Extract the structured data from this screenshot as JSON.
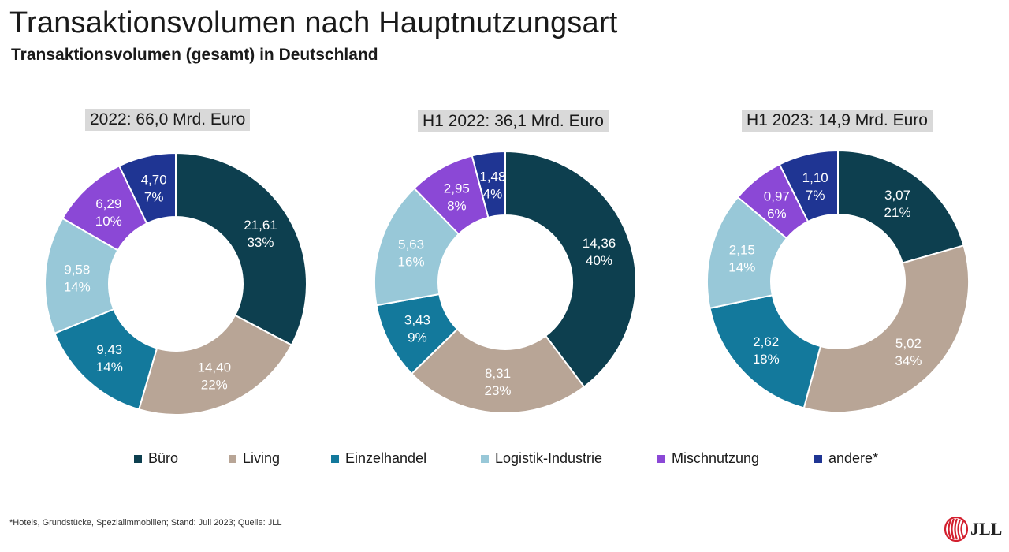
{
  "title": "Transaktionsvolumen nach Hauptnutzungsart",
  "subtitle": "Transaktionsvolumen (gesamt) in Deutschland",
  "colors": {
    "Büro": "#0d3f4f",
    "Living": "#b8a596",
    "Einzelhandel": "#13799c",
    "Logistik-Industrie": "#98c8d8",
    "Mischnutzung": "#8b48d6",
    "andere*": "#1f3593"
  },
  "legend": [
    "Büro",
    "Living",
    "Einzelhandel",
    "Logistik-Industrie",
    "Mischnutzung",
    "andere*"
  ],
  "chart_data": [
    {
      "type": "pie",
      "subtype": "donut",
      "title": "2022: 66,0 Mrd. Euro",
      "categories": [
        "Büro",
        "Living",
        "Einzelhandel",
        "Logistik-Industrie",
        "Mischnutzung",
        "andere*"
      ],
      "values": [
        21.61,
        14.4,
        9.43,
        9.58,
        6.29,
        4.7
      ],
      "value_labels": [
        "21,61",
        "14,40",
        "9,43",
        "9,58",
        "6,29",
        "4,70"
      ],
      "percent_labels": [
        "33%",
        "22%",
        "14%",
        "14%",
        "10%",
        "7%"
      ]
    },
    {
      "type": "pie",
      "subtype": "donut",
      "title": "H1 2022: 36,1 Mrd. Euro",
      "categories": [
        "Büro",
        "Living",
        "Einzelhandel",
        "Logistik-Industrie",
        "Mischnutzung",
        "andere*"
      ],
      "values": [
        14.36,
        8.31,
        3.43,
        5.63,
        2.95,
        1.48
      ],
      "value_labels": [
        "14,36",
        "8,31",
        "3,43",
        "5,63",
        "2,95",
        "1,48"
      ],
      "percent_labels": [
        "40%",
        "23%",
        "9%",
        "16%",
        "8%",
        "4%"
      ]
    },
    {
      "type": "pie",
      "subtype": "donut",
      "title": "H1 2023: 14,9 Mrd. Euro",
      "categories": [
        "Büro",
        "Living",
        "Einzelhandel",
        "Logistik-Industrie",
        "Mischnutzung",
        "andere*"
      ],
      "values": [
        3.07,
        5.02,
        2.62,
        2.15,
        0.97,
        1.1
      ],
      "value_labels": [
        "3,07",
        "5,02",
        "2,62",
        "2,15",
        "0,97",
        "1,10"
      ],
      "percent_labels": [
        "21%",
        "34%",
        "18%",
        "14%",
        "6%",
        "7%"
      ]
    }
  ],
  "footnote": "*Hotels, Grundstücke, Spezialimmobilien; Stand: Juli 2023; Quelle: JLL",
  "logo": {
    "text": "JLL",
    "color": "#d3202f"
  }
}
